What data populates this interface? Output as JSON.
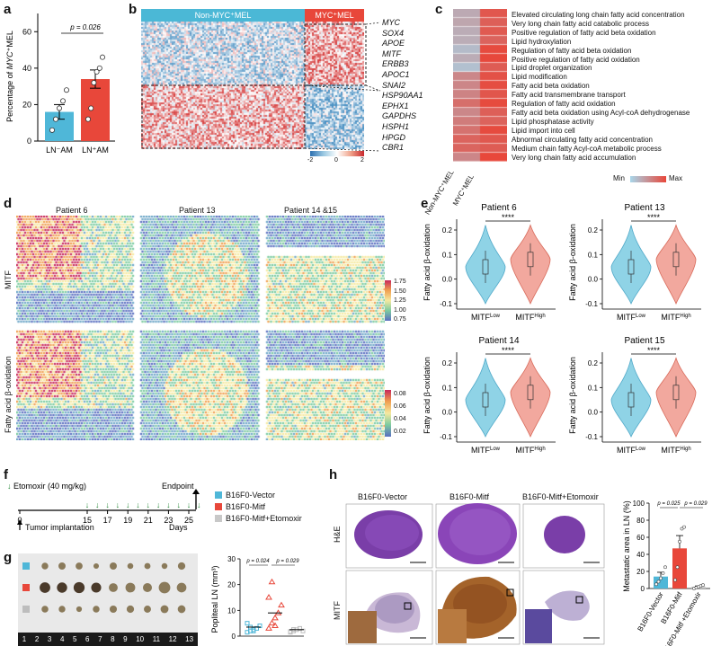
{
  "panels": {
    "a": {
      "letter": "a",
      "ylabel_prefix": "Percentage of ",
      "ylabel_italic": "MYC",
      "ylabel_suffix": "⁺MEL",
      "pvalue": "p = 0.026",
      "yticks": [
        "0",
        "20",
        "40",
        "60"
      ],
      "chart_data": {
        "type": "bar",
        "categories": [
          "LN⁻AM",
          "LN⁺AM"
        ],
        "values": [
          16,
          34
        ],
        "errors": [
          4,
          5
        ],
        "points": [
          [
            6,
            12,
            18,
            22,
            28
          ],
          [
            12,
            18,
            32,
            38,
            40,
            46
          ]
        ],
        "colors": [
          "#4fb7d8",
          "#e8473a"
        ],
        "ylim": [
          0,
          70
        ]
      }
    },
    "b": {
      "letter": "b",
      "group_left": "Non-MYC⁺MEL",
      "group_right": "MYC⁺MEL",
      "genes": [
        "MYC",
        "SOX4",
        "APOE",
        "MITF",
        "ERBB3",
        "APOC1",
        "SNAI2",
        "HSP90AA1",
        "EPHX1",
        "GAPDHS",
        "HSPH1",
        "HPGD",
        "CBR1"
      ],
      "scale_ticks": [
        "-2",
        "0",
        "2"
      ]
    },
    "c": {
      "letter": "c",
      "terms": [
        "Elevated circulating long chain fatty acid concentration",
        "Very long chain fatty acid catabolic process",
        "Positive regulation of fatty acid beta oxidation",
        "Lipid hydroxylation",
        "Regulation of fatty acid beta oxidation",
        "Positive regulation of fatty acid oxidation",
        "Lipid droplet organization",
        "Lipid modification",
        "Fatty acid beta oxidation",
        "Fatty acid transmembrane transport",
        "Regulation of fatty acid oxidation",
        "Fatty acid beta oxidation using Acyl-coA dehydrogenase",
        "Lipid phosphatase activity",
        "Lipid import into cell",
        "Abnormal circulating fatty acid concentration",
        "Medium chain fatty Acyl-coA metabolic process",
        "Very long chain fatty acid accumulation"
      ],
      "columns": [
        "Non-MYC⁺MEL",
        "MYC⁺MEL"
      ],
      "scale_min": "Min",
      "scale_max": "Max"
    },
    "d": {
      "letter": "d",
      "patients": [
        "Patient 6",
        "Patient 13",
        "Patient 14 &15"
      ],
      "row_labels": [
        "MITF",
        "Fatty acid β-oxidation"
      ],
      "scale1": [
        "1.75",
        "1.50",
        "1.25",
        "1.00",
        "0.75"
      ],
      "scale2": [
        "0.08",
        "0.06",
        "0.04",
        "0.02"
      ]
    },
    "e": {
      "letter": "e",
      "ylabel": "Fatty acid β-oxidation",
      "sig": "****",
      "xcats": [
        "MITFLow",
        "MITFHigh"
      ],
      "xcat_base": "MITF",
      "xcat_sup": [
        "Low",
        "High"
      ],
      "plots": [
        {
          "title": "Patient 6",
          "yticks": [
            "0.2",
            "0.1",
            "0.0",
            "-0.1"
          ]
        },
        {
          "title": "Patient 13",
          "yticks": [
            "0.2",
            "0.1",
            "0.0",
            "-0.1"
          ]
        },
        {
          "title": "Patient 14",
          "yticks": [
            "0.2",
            "0.1",
            "0.0",
            "-0.1"
          ]
        },
        {
          "title": "Patient 15",
          "yticks": [
            "0.2",
            "0.1",
            "0.0",
            "-0.1"
          ]
        }
      ]
    },
    "f": {
      "letter": "f",
      "drug": "Etomoxir (40 mg/kg)",
      "endpoint": "Endpoint",
      "implant": "Tumor implantation",
      "days_label": "Days",
      "ticks": [
        "0",
        "15",
        "17",
        "19",
        "21",
        "23",
        "25"
      ],
      "legend": [
        {
          "label": "B16F0-Vector",
          "color": "#4fb7d8"
        },
        {
          "label": "B16F0-Mitf",
          "color": "#e8473a"
        },
        {
          "label": "B16F0-Mitf+Etomoxir",
          "color": "#c8c8c8"
        }
      ]
    },
    "g": {
      "letter": "g",
      "ruler": [
        "1",
        "2",
        "3",
        "4",
        "5",
        "6",
        "7",
        "8",
        "9",
        "10",
        "11",
        "12",
        "13"
      ],
      "ylabel": "Popliteal LN (mm³)",
      "yticks": [
        "0",
        "10",
        "20",
        "30"
      ],
      "p1": "p = 0.024",
      "p2": "p = 0.029",
      "chart_data": {
        "type": "scatter",
        "categories": [
          "B16F0-Vector",
          "B16F0-Mitf",
          "B16F0-Mitf+Etomoxir"
        ],
        "means": [
          3.5,
          9,
          2.5
        ],
        "points": [
          [
            1.5,
            2,
            2.5,
            3,
            4,
            5,
            3.5,
            2
          ],
          [
            3,
            5,
            7,
            9,
            12,
            15,
            21,
            4
          ],
          [
            1.5,
            2,
            2.5,
            3,
            2,
            1.8,
            2.6
          ]
        ],
        "ylim": [
          0,
          30
        ]
      }
    },
    "h": {
      "letter": "h",
      "cols": [
        "B16F0-Vector",
        "B16F0-Mitf",
        "B16F0-Mitf+Etomoxir"
      ],
      "rows": [
        "H&E",
        "MITF"
      ],
      "ylabel": "Metastatic area in LN (%)",
      "yticks": [
        "0",
        "20",
        "40",
        "60",
        "80",
        "100"
      ],
      "p1": "p = 0.025",
      "p2": "p = 0.029",
      "xcats": [
        "B16F0-Vector",
        "B16F0-Mitf",
        "B16F0-Mitf +Etomoxir"
      ],
      "chart_data": {
        "type": "bar",
        "categories": [
          "B16F0-Vector",
          "B16F0-Mitf",
          "B16F0-Mitf+Etomoxir"
        ],
        "values": [
          14,
          47,
          2
        ],
        "errors": [
          5,
          15,
          1
        ],
        "points": [
          [
            5,
            8,
            12,
            18,
            25
          ],
          [
            10,
            25,
            55,
            70,
            72
          ],
          [
            0,
            1,
            2,
            3,
            4
          ]
        ],
        "ylim": [
          0,
          100
        ]
      }
    }
  }
}
